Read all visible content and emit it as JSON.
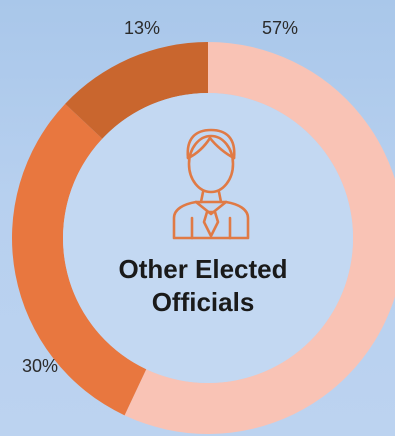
{
  "chart_data": {
    "type": "pie",
    "variant": "donut",
    "categories": [
      "57%",
      "30%",
      "13%"
    ],
    "values": [
      57,
      30,
      13
    ],
    "colors": [
      "#f9c3b5",
      "#e8773f",
      "#c9662e"
    ],
    "center_title": [
      "Other Elected",
      "Officials"
    ],
    "center_icon": "person-icon",
    "center_icon_color": "#e07a45",
    "center_fill": "#c3d8f2",
    "title": "",
    "legend": "none"
  }
}
